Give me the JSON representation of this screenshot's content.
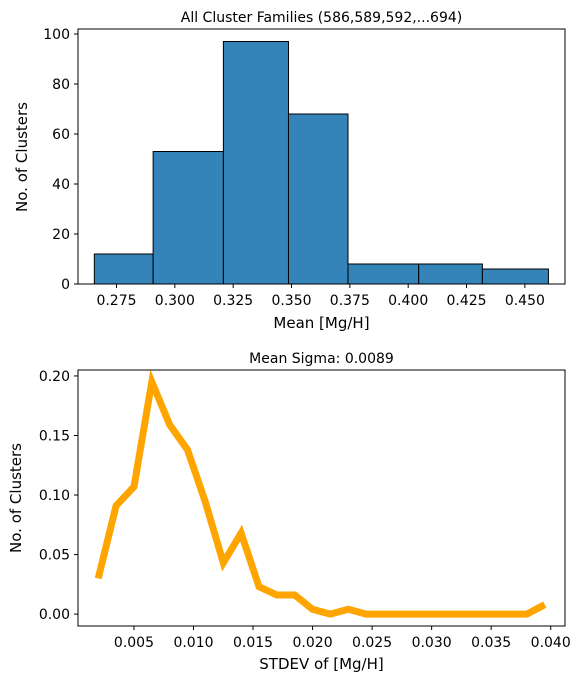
{
  "chart_data": [
    {
      "type": "bar",
      "title": "All Cluster Families (586,589,592,...694)",
      "xlabel": "Mean [Mg/H]",
      "ylabel": "No. of Clusters",
      "xlim": [
        0.2585,
        0.4672
      ],
      "ylim": [
        0,
        102
      ],
      "xticks": [
        "0.275",
        "0.300",
        "0.325",
        "0.350",
        "0.375",
        "0.400",
        "0.425",
        "0.450"
      ],
      "yticks": [
        "0",
        "20",
        "40",
        "60",
        "80",
        "100"
      ],
      "bin_edges": [
        0.2655,
        0.2907,
        0.3208,
        0.3487,
        0.3742,
        0.4045,
        0.4318,
        0.4601
      ],
      "values": [
        12,
        53,
        97,
        68,
        8,
        8,
        6
      ],
      "bar_color": "#3484ba",
      "edge_color": "#000000",
      "grid": false
    },
    {
      "type": "line",
      "title": "Mean Sigma: 0.0089",
      "xlabel": "STDEV of [Mg/H]",
      "ylabel": "No. of Clusters",
      "xlim": [
        0.0003,
        0.0412
      ],
      "ylim": [
        -0.01,
        0.205
      ],
      "xticks": [
        "0.005",
        "0.010",
        "0.015",
        "0.020",
        "0.025",
        "0.030",
        "0.035",
        "0.040"
      ],
      "yticks": [
        "0.00",
        "0.05",
        "0.10",
        "0.15",
        "0.20"
      ],
      "series": [
        {
          "color": "#ffa500",
          "x": [
            0.002,
            0.0035,
            0.005,
            0.0065,
            0.008,
            0.0095,
            0.011,
            0.0125,
            0.014,
            0.0155,
            0.017,
            0.0185,
            0.02,
            0.0215,
            0.023,
            0.0245,
            0.026,
            0.0275,
            0.029,
            0.0305,
            0.032,
            0.0335,
            0.035,
            0.0365,
            0.038,
            0.0395
          ],
          "y": [
            0.03,
            0.091,
            0.107,
            0.195,
            0.159,
            0.138,
            0.094,
            0.043,
            0.068,
            0.023,
            0.016,
            0.016,
            0.004,
            0.0,
            0.004,
            0.0,
            0.0,
            0.0,
            0.0,
            0.0,
            0.0,
            0.0,
            0.0,
            0.0,
            0.0,
            0.008
          ]
        }
      ],
      "grid": false
    }
  ]
}
